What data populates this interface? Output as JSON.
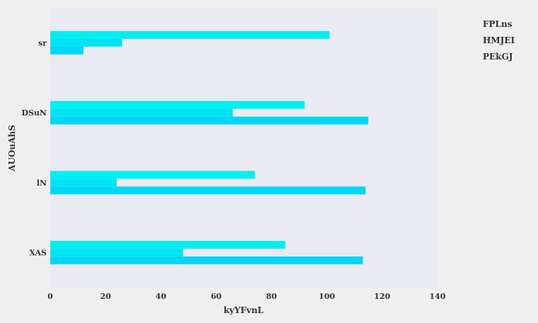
{
  "chart_data": {
    "type": "bar",
    "orientation": "horizontal",
    "categories": [
      "XAS",
      "lN",
      "DSuN",
      "sr"
    ],
    "series": [
      {
        "name": "FPLns",
        "values": [
          85,
          74,
          92,
          101
        ],
        "color": "#00eef0"
      },
      {
        "name": "HMJEI",
        "values": [
          48,
          24,
          66,
          26
        ],
        "color": "#00e3f2"
      },
      {
        "name": "PEkGJ",
        "values": [
          113,
          114,
          115,
          12
        ],
        "color": "#00d6f5"
      }
    ],
    "xlabel": "kyYFvnL",
    "ylabel": "AUOuAhS",
    "xlim": [
      0,
      140
    ],
    "xticks": [
      0,
      20,
      40,
      60,
      80,
      100,
      120,
      140
    ],
    "grid": false,
    "background": "#eaeaf2",
    "legend_position": "right"
  }
}
